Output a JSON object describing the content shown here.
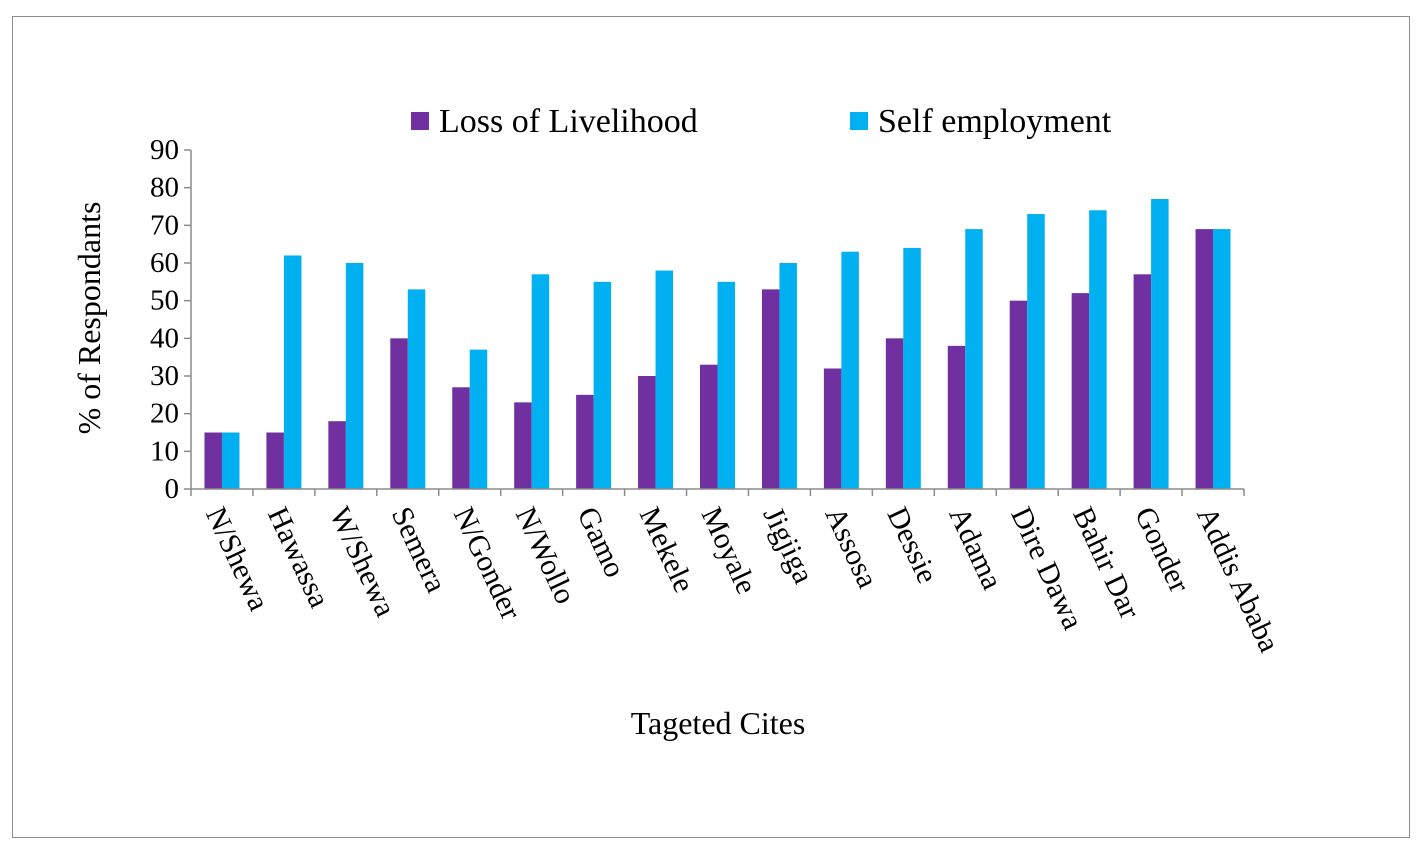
{
  "chart_data": {
    "type": "bar",
    "title": "",
    "xlabel": "Tageted Cites",
    "ylabel": "% of Respondants",
    "ylim": [
      0,
      90
    ],
    "yticks": [
      0,
      10,
      20,
      30,
      40,
      50,
      60,
      70,
      80,
      90
    ],
    "grid": false,
    "legend_position": "top",
    "categories": [
      "N/Shewa",
      "Hawassa",
      "W/Shewa",
      "Semera",
      "N/Gonder",
      "N/Wollo",
      "Gamo",
      "Mekele",
      "Moyale",
      "Jigjiga",
      "Assosa",
      "Dessie",
      "Adama",
      "Dire Dawa",
      "Bahir Dar",
      "Gonder",
      "Addis Ababa"
    ],
    "series": [
      {
        "name": "Loss of Livelihood",
        "color": "#7030a0",
        "values": [
          15,
          15,
          18,
          40,
          27,
          23,
          25,
          30,
          33,
          53,
          32,
          40,
          38,
          50,
          52,
          57,
          69
        ]
      },
      {
        "name": "Self employment",
        "color": "#00b0f0",
        "values": [
          15,
          62,
          60,
          53,
          37,
          57,
          55,
          58,
          55,
          60,
          63,
          64,
          69,
          73,
          74,
          77,
          69
        ]
      }
    ]
  }
}
